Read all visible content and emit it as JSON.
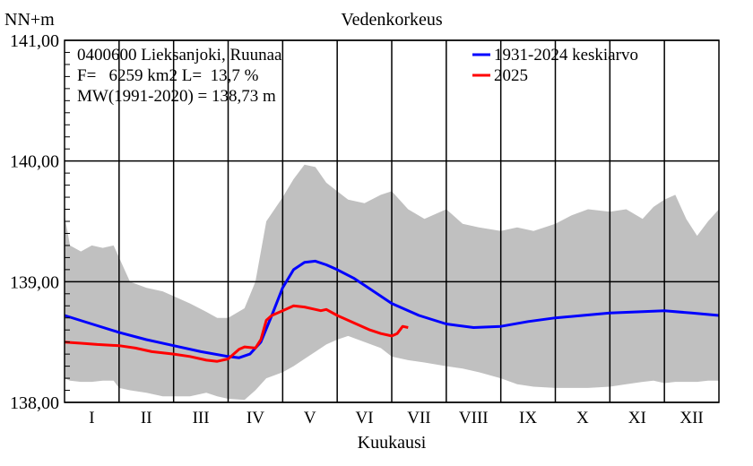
{
  "chart_data": {
    "type": "line",
    "title": "Vedenkorkeus",
    "ylabel": "NN+m",
    "xlabel": "Kuukausi",
    "ylim": [
      138.0,
      141.0
    ],
    "xlim": [
      0,
      12
    ],
    "y_ticks": [
      "138,00",
      "139,00",
      "140,00",
      "141,00"
    ],
    "y_tick_values": [
      138.0,
      139.0,
      140.0,
      141.0
    ],
    "categories": [
      "I",
      "II",
      "III",
      "IV",
      "V",
      "VI",
      "VII",
      "VIII",
      "IX",
      "X",
      "XI",
      "XII"
    ],
    "grid": true,
    "legend_position": "top-right",
    "info": {
      "station": "0400600 Lieksanjoki, Ruunaa",
      "area": "F=   6259 km2 L=  13,7 %",
      "mw": "MW(1991-2020) = 138,73 m"
    },
    "band": {
      "color": "#c0c0c0",
      "x": [
        0,
        0.1,
        0.3,
        0.5,
        0.7,
        0.9,
        1.0,
        1.2,
        1.5,
        1.8,
        2.0,
        2.3,
        2.6,
        2.8,
        3.0,
        3.3,
        3.5,
        3.7,
        4.0,
        4.2,
        4.4,
        4.6,
        4.8,
        5.0,
        5.2,
        5.5,
        5.8,
        6.0,
        6.3,
        6.6,
        7.0,
        7.3,
        7.6,
        8.0,
        8.3,
        8.6,
        9.0,
        9.3,
        9.6,
        10.0,
        10.3,
        10.6,
        10.8,
        11.0,
        11.2,
        11.4,
        11.6,
        11.8,
        12.0
      ],
      "upper": [
        139.55,
        139.3,
        139.25,
        139.3,
        139.28,
        139.3,
        139.2,
        139.0,
        138.95,
        138.92,
        138.88,
        138.82,
        138.75,
        138.7,
        138.7,
        138.78,
        139.0,
        139.5,
        139.7,
        139.85,
        139.97,
        139.95,
        139.82,
        139.75,
        139.68,
        139.65,
        139.72,
        139.75,
        139.6,
        139.52,
        139.6,
        139.48,
        139.45,
        139.42,
        139.45,
        139.42,
        139.48,
        139.55,
        139.6,
        139.58,
        139.6,
        139.52,
        139.62,
        139.68,
        139.72,
        139.52,
        139.38,
        139.5,
        139.6
      ],
      "lower": [
        138.2,
        138.18,
        138.17,
        138.17,
        138.18,
        138.18,
        138.12,
        138.1,
        138.08,
        138.05,
        138.05,
        138.05,
        138.08,
        138.05,
        138.03,
        138.02,
        138.1,
        138.2,
        138.25,
        138.3,
        138.36,
        138.42,
        138.48,
        138.52,
        138.55,
        138.5,
        138.45,
        138.38,
        138.35,
        138.33,
        138.3,
        138.28,
        138.25,
        138.2,
        138.15,
        138.13,
        138.12,
        138.12,
        138.12,
        138.13,
        138.15,
        138.17,
        138.18,
        138.16,
        138.17,
        138.17,
        138.17,
        138.18,
        138.18
      ]
    },
    "series": [
      {
        "name": "1931-2024 keskiarvo",
        "color": "#0000ff",
        "x": [
          0,
          0.5,
          1.0,
          1.5,
          2.0,
          2.5,
          3.0,
          3.2,
          3.4,
          3.6,
          3.8,
          4.0,
          4.2,
          4.4,
          4.6,
          4.8,
          5.0,
          5.3,
          5.6,
          6.0,
          6.5,
          7.0,
          7.5,
          8.0,
          8.5,
          9.0,
          9.5,
          10.0,
          10.5,
          11.0,
          11.5,
          12.0
        ],
        "y": [
          138.72,
          138.65,
          138.58,
          138.52,
          138.47,
          138.42,
          138.38,
          138.37,
          138.4,
          138.5,
          138.72,
          138.95,
          139.1,
          139.16,
          139.17,
          139.14,
          139.1,
          139.03,
          138.94,
          138.82,
          138.72,
          138.65,
          138.62,
          138.63,
          138.67,
          138.7,
          138.72,
          138.74,
          138.75,
          138.76,
          138.74,
          138.72
        ]
      },
      {
        "name": "2025",
        "color": "#ff0000",
        "x": [
          0,
          0.3,
          0.6,
          1.0,
          1.3,
          1.6,
          2.0,
          2.3,
          2.6,
          2.8,
          3.0,
          3.1,
          3.2,
          3.3,
          3.5,
          3.6,
          3.7,
          3.8,
          4.0,
          4.2,
          4.4,
          4.6,
          4.7,
          4.8,
          5.0,
          5.3,
          5.6,
          5.8,
          6.0,
          6.1,
          6.2,
          6.3
        ],
        "y": [
          138.5,
          138.49,
          138.48,
          138.47,
          138.45,
          138.42,
          138.4,
          138.38,
          138.35,
          138.34,
          138.36,
          138.4,
          138.44,
          138.46,
          138.45,
          138.52,
          138.68,
          138.72,
          138.76,
          138.8,
          138.79,
          138.77,
          138.76,
          138.77,
          138.72,
          138.66,
          138.6,
          138.57,
          138.55,
          138.57,
          138.63,
          138.62
        ]
      }
    ]
  }
}
